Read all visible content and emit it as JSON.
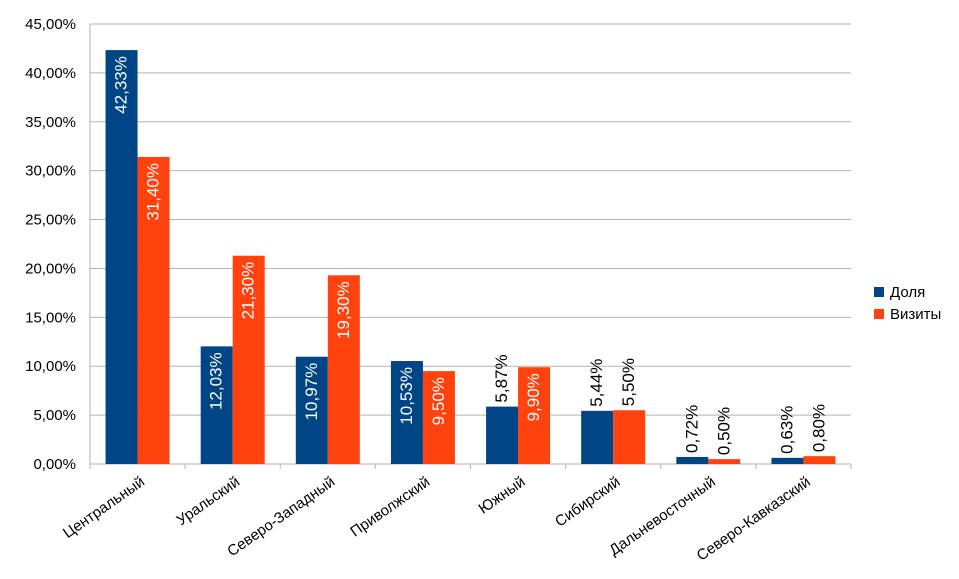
{
  "chart_data": {
    "type": "bar",
    "categories": [
      "Центральный",
      "Уральский",
      "Северо-Западный",
      "Приволжский",
      "Южный",
      "Сибирский",
      "Дальневосточный",
      "Северо-Кавказский"
    ],
    "series": [
      {
        "name": "Доля",
        "color": "#004586",
        "values": [
          42.33,
          12.03,
          10.97,
          10.53,
          5.87,
          5.44,
          0.72,
          0.63
        ],
        "labels": [
          "42,33%",
          "12,03%",
          "10,97%",
          "10,53%",
          "5,87%",
          "5,44%",
          "0,72%",
          "0,63%"
        ]
      },
      {
        "name": "Визиты",
        "color": "#ff420e",
        "values": [
          31.4,
          21.3,
          19.3,
          9.5,
          9.9,
          5.5,
          0.5,
          0.8
        ],
        "labels": [
          "31,40%",
          "21,30%",
          "19,30%",
          "9,50%",
          "9,90%",
          "5,50%",
          "0,50%",
          "0,80%"
        ]
      }
    ],
    "yticks": [
      "0,00%",
      "5,00%",
      "10,00%",
      "15,00%",
      "20,00%",
      "25,00%",
      "30,00%",
      "35,00%",
      "40,00%",
      "45,00%"
    ],
    "ylim": [
      0,
      45
    ],
    "grid": true,
    "legend_position": "right"
  }
}
